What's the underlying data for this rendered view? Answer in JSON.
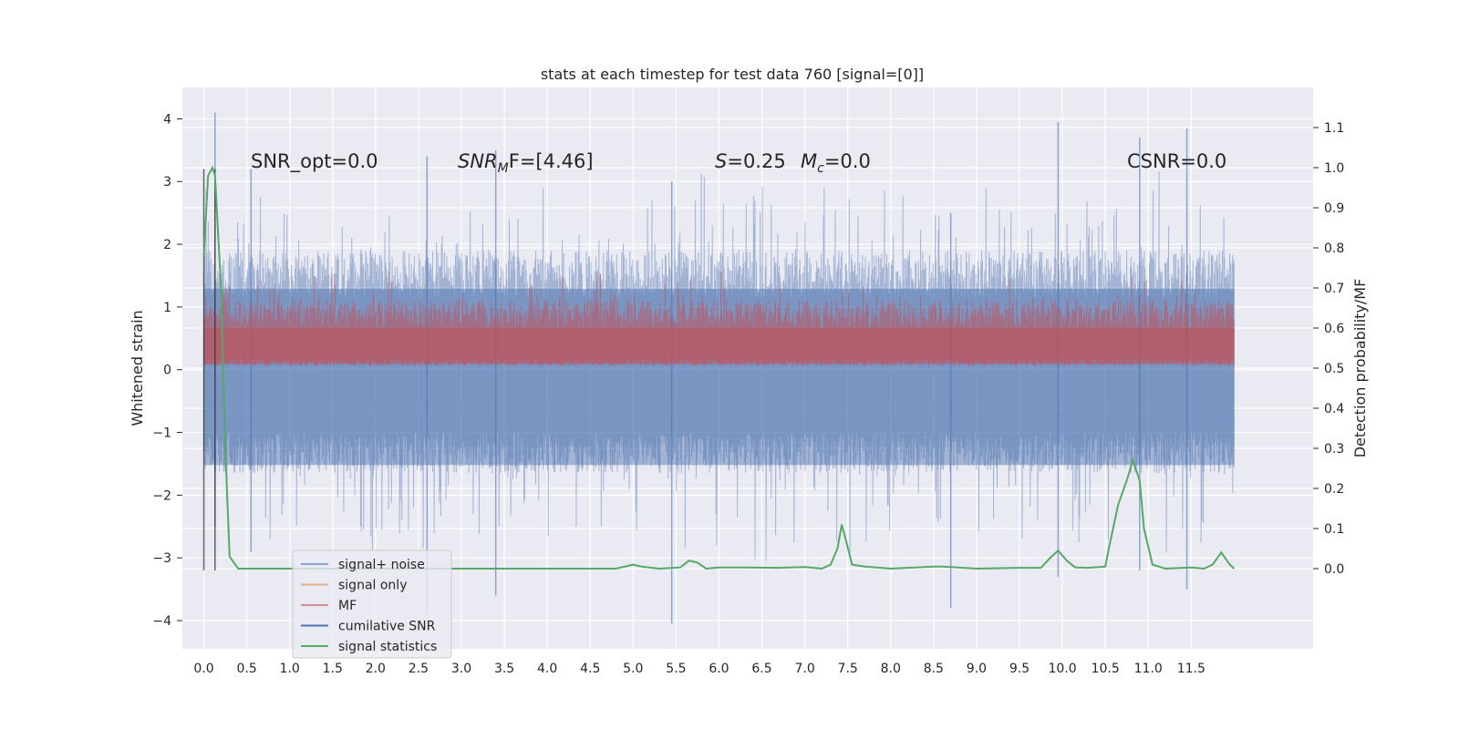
{
  "chart_data": {
    "type": "line",
    "title": "stats at each timestep for test data 760 [signal=[0]]",
    "xlabel": "",
    "ylabel": "Whitened strain",
    "y2label": "Detection probability/MF",
    "xlim": [
      -0.25,
      12.92
    ],
    "ylim": [
      -4.45,
      4.5
    ],
    "y2lim": [
      -0.2,
      1.2
    ],
    "x_ticks": [
      "0.0",
      "0.5",
      "1.0",
      "1.5",
      "2.0",
      "2.5",
      "3.0",
      "3.5",
      "4.0",
      "4.5",
      "5.0",
      "5.5",
      "6.0",
      "6.5",
      "7.0",
      "7.5",
      "8.0",
      "8.5",
      "9.0",
      "9.5",
      "10.0",
      "10.5",
      "11.0",
      "11.5"
    ],
    "y_ticks": [
      "−4",
      "−3",
      "−2",
      "−1",
      "0",
      "1",
      "2",
      "3",
      "4"
    ],
    "y2_ticks": [
      "0.0",
      "0.1",
      "0.2",
      "0.3",
      "0.4",
      "0.5",
      "0.6",
      "0.7",
      "0.8",
      "0.9",
      "1.0",
      "1.1"
    ],
    "grid": true,
    "legend_position": "lower-left",
    "annotations": {
      "snr_opt": "SNR_opt=0.0",
      "snr_mf_name": "SNR",
      "snr_mf_sub": "M",
      "snr_mf_rest": "F=[4.46]",
      "s_name": "S",
      "s_value": "=0.25",
      "mc_name": "M",
      "mc_sub": "c",
      "mc_value": "=0.0",
      "csnr": "CSNR=0.0"
    },
    "series": [
      {
        "name": "signal+ noise",
        "color": "#4c72b0",
        "axis": "left",
        "x_range": [
          0.0,
          12.0
        ],
        "amplitude_range": [
          -4.05,
          4.1
        ],
        "typical_envelope": [
          -1.5,
          1.9
        ]
      },
      {
        "name": "signal only",
        "color": "#dd8452",
        "axis": "left",
        "values_constant": 0.0
      },
      {
        "name": "MF",
        "color": "#c44e52",
        "axis": "right",
        "x_range": [
          0.0,
          12.0
        ],
        "band": [
          0.5,
          0.7
        ],
        "peak": 0.77
      },
      {
        "name": "cumilative SNR",
        "color": "#4c72b0",
        "axis": "right",
        "values_constant": 0.0
      },
      {
        "name": "signal statistics",
        "color": "#55a868",
        "axis": "right",
        "x": [
          0.0,
          0.05,
          0.1,
          0.13,
          0.2,
          0.25,
          0.3,
          0.4,
          0.6,
          1.0,
          2.0,
          3.0,
          4.0,
          4.8,
          5.0,
          5.1,
          5.3,
          5.55,
          5.65,
          5.75,
          5.85,
          6.0,
          6.3,
          6.7,
          7.0,
          7.2,
          7.3,
          7.38,
          7.43,
          7.48,
          7.55,
          7.7,
          8.0,
          8.5,
          8.6,
          9.0,
          9.5,
          9.75,
          9.85,
          9.95,
          10.05,
          10.15,
          10.3,
          10.5,
          10.55,
          10.65,
          10.75,
          10.82,
          10.9,
          10.95,
          11.05,
          11.2,
          11.5,
          11.65,
          11.75,
          11.85,
          11.95,
          12.0
        ],
        "values": [
          0.78,
          0.98,
          1.0,
          0.98,
          0.7,
          0.3,
          0.03,
          0.0,
          0.0,
          0.0,
          0.0,
          0.0,
          0.0,
          0.0,
          0.01,
          0.005,
          0.0,
          0.003,
          0.02,
          0.015,
          0.0,
          0.003,
          0.003,
          0.002,
          0.004,
          0.0,
          0.01,
          0.05,
          0.11,
          0.07,
          0.01,
          0.005,
          0.0,
          0.005,
          0.005,
          0.0,
          0.002,
          0.002,
          0.025,
          0.045,
          0.02,
          0.003,
          0.002,
          0.005,
          0.06,
          0.16,
          0.22,
          0.27,
          0.22,
          0.1,
          0.01,
          0.0,
          0.003,
          0.0,
          0.01,
          0.04,
          0.01,
          0.0
        ]
      }
    ]
  }
}
